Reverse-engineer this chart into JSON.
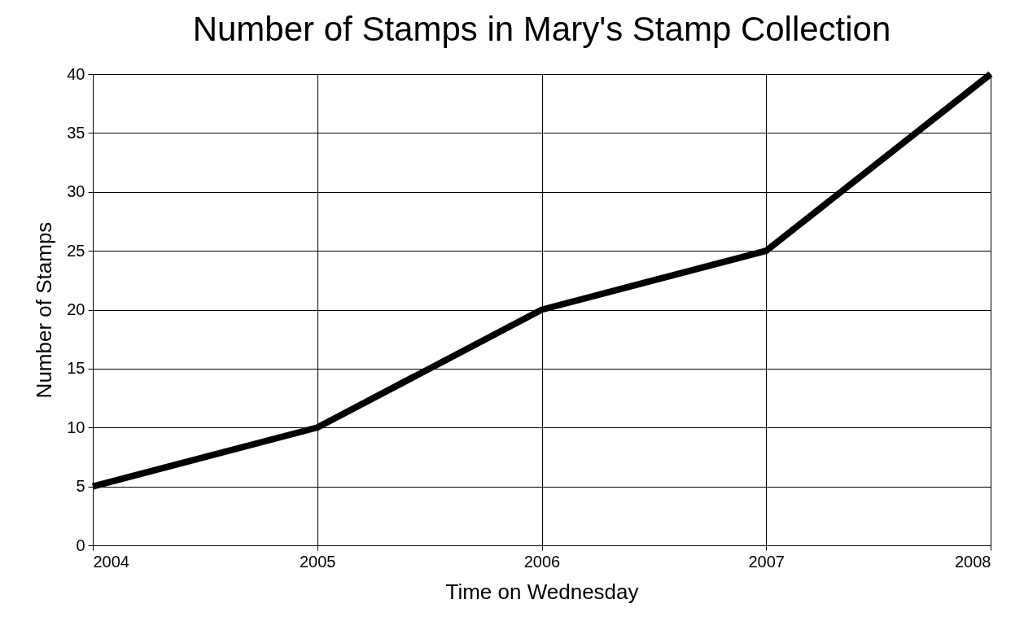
{
  "chart_data": {
    "type": "line",
    "title": "Number of Stamps in Mary's Stamp Collection",
    "xlabel": "Time on Wednesday",
    "ylabel": "Number of Stamps",
    "x": [
      2004,
      2005,
      2006,
      2007,
      2008
    ],
    "series": [
      {
        "color": "#000000",
        "values": [
          5,
          10,
          20,
          25,
          40
        ]
      }
    ],
    "xlim": [
      2004,
      2008
    ],
    "xticks": [
      2004,
      2005,
      2006,
      2007,
      2008
    ],
    "ylim": [
      0,
      40
    ],
    "yticks": [
      0,
      5,
      10,
      15,
      20,
      25,
      30,
      35,
      40
    ],
    "grid": true,
    "marker": "none",
    "line_style": "solid"
  }
}
